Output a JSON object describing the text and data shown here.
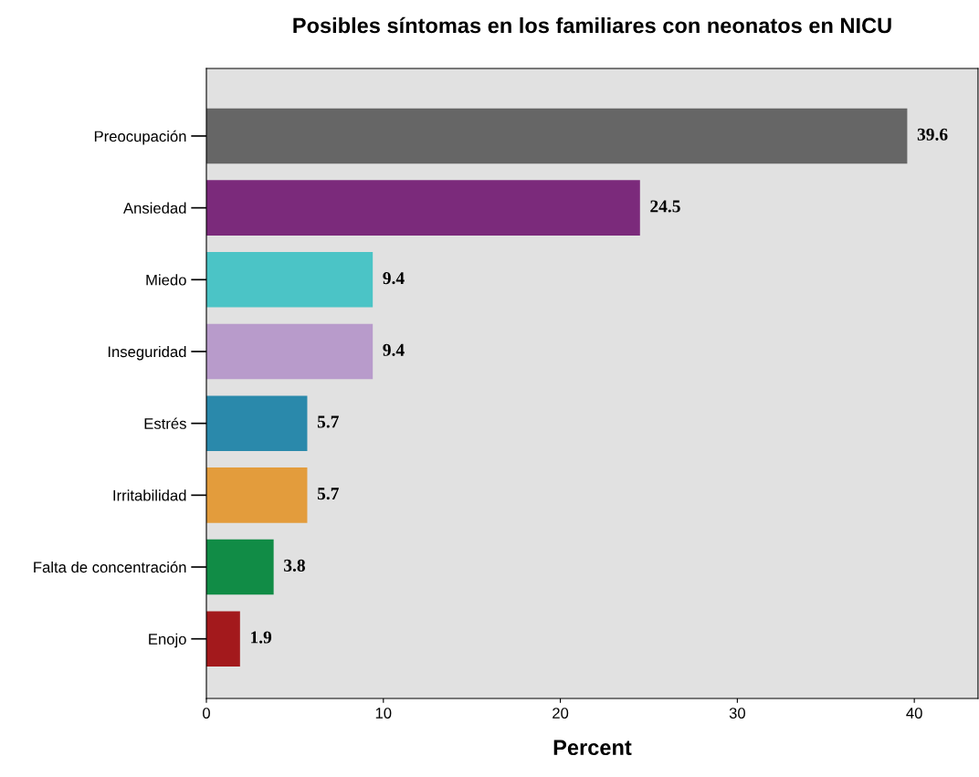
{
  "chart_data": {
    "type": "bar",
    "orientation": "horizontal",
    "title": "Posibles síntomas en los familiares con neonatos en NICU",
    "xlabel": "Percent",
    "categories": [
      "Preocupación",
      "Ansiedad",
      "Miedo",
      "Inseguridad",
      "Estrés",
      "Irritabilidad",
      "Falta de concentración",
      "Enojo"
    ],
    "values": [
      39.6,
      24.5,
      9.4,
      9.4,
      5.7,
      5.7,
      3.8,
      1.9
    ],
    "colors": [
      "#666666",
      "#7b2a7b",
      "#4bc4c6",
      "#b89bcb",
      "#2a89ab",
      "#e39c3c",
      "#118c46",
      "#a3191c"
    ],
    "xlim": [
      0,
      43.6
    ],
    "xticks": [
      0,
      10,
      20,
      30,
      40
    ],
    "data_labels": true,
    "grid": false,
    "legend": false
  }
}
